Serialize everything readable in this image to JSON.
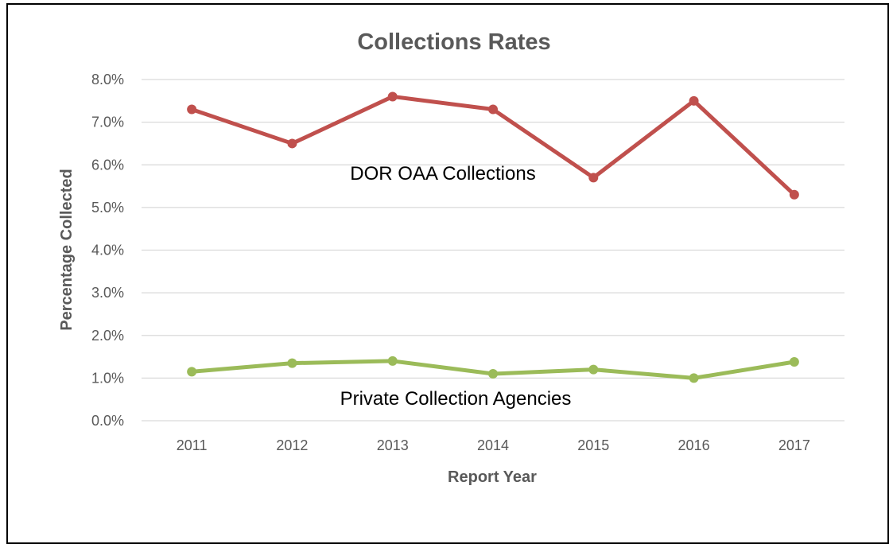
{
  "chart_data": {
    "type": "line",
    "title": "Collections Rates",
    "xlabel": "Report Year",
    "ylabel": "Percentage Collected",
    "categories": [
      "2011",
      "2012",
      "2013",
      "2014",
      "2015",
      "2016",
      "2017"
    ],
    "ylim": [
      0,
      8
    ],
    "y_ticks": [
      "0.0%",
      "1.0%",
      "2.0%",
      "3.0%",
      "4.0%",
      "5.0%",
      "6.0%",
      "7.0%",
      "8.0%"
    ],
    "grid": true,
    "legend": "none",
    "series": [
      {
        "name": "DOR OAA Collections",
        "color": "#c0504d",
        "values": [
          7.3,
          6.5,
          7.6,
          7.3,
          5.7,
          7.5,
          5.3
        ]
      },
      {
        "name": "Private Collection Agencies",
        "color": "#9bbb59",
        "values": [
          1.15,
          1.35,
          1.4,
          1.1,
          1.2,
          1.0,
          1.38
        ]
      }
    ]
  }
}
